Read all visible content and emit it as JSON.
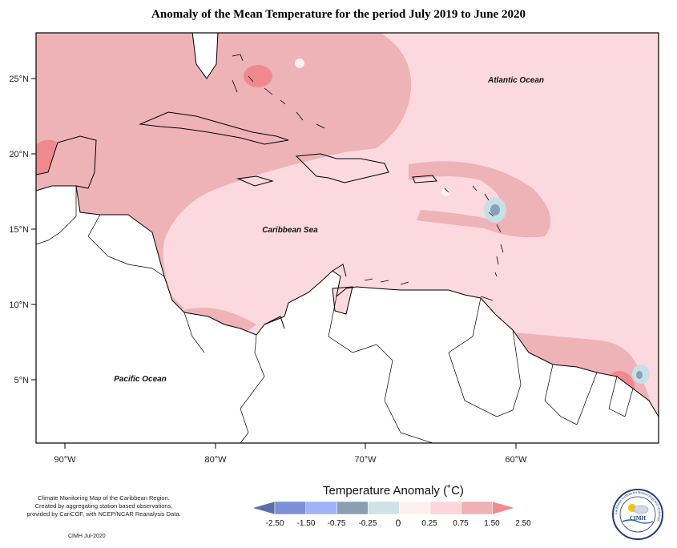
{
  "title": "Anomaly of the Mean Temperature for the period July 2019 to June 2020",
  "axes": {
    "y_ticks": [
      "25°N",
      "20°N",
      "15°N",
      "10°N",
      "5°N"
    ],
    "x_ticks": [
      "90°W",
      "80°W",
      "70°W",
      "60°W"
    ]
  },
  "labels": {
    "atlantic": "Atlantic Ocean",
    "caribbean": "Caribbean Sea",
    "pacific": "Pacific Ocean"
  },
  "legend": {
    "title": "Temperature Anomaly (˚C)",
    "bins": [
      {
        "color": "#5a6ea8"
      },
      {
        "color": "#7d8fd6"
      },
      {
        "color": "#a0b2f7"
      },
      {
        "color": "#8aa0b0"
      },
      {
        "color": "#cfe2e8"
      },
      {
        "color": "#fff0f0"
      },
      {
        "color": "#fcd6dd"
      },
      {
        "color": "#efb1b6"
      },
      {
        "color": "#f08b92"
      }
    ],
    "ticks": [
      "-2.50",
      "-1.50",
      "-0.75",
      "-0.25",
      "0",
      "0.25",
      "0.75",
      "1.50",
      "2.50"
    ]
  },
  "credit": {
    "line1": "Climate Monitoring Map of the Caribbean Region.",
    "line2": "Created by aggregating station based observations,",
    "line3": "provided by CariCOF, with NCEP/NCAR Reanalysis Data.",
    "date": "CIMH Jul-2020"
  },
  "logo": {
    "text": "CIMH",
    "ring_text": "Caribbean Institute for Meteorology and Hydrology",
    "icon": "cimh-sun-cloud-logo"
  },
  "colors": {
    "light_pink": "#fcd9de",
    "mid_pink": "#eeb3b7",
    "strong_pink": "#f0898f",
    "light_blue": "#c7dfe6",
    "blue": "#8aa0b8"
  }
}
